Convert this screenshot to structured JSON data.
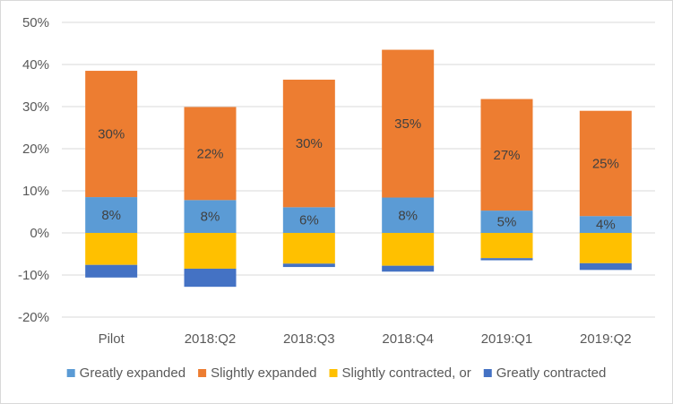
{
  "chart_data": {
    "type": "bar",
    "stacked": true,
    "categories": [
      "Pilot",
      "2018:Q2",
      "2018:Q3",
      "2018:Q4",
      "2019:Q1",
      "2019:Q2"
    ],
    "series": [
      {
        "name": "Greatly expanded",
        "color": "#5b9bd5",
        "values": [
          8.5,
          7.8,
          6.1,
          8.4,
          5.3,
          4.0
        ],
        "labels": [
          "8%",
          "8%",
          "6%",
          "8%",
          "5%",
          "4%"
        ]
      },
      {
        "name": "Slightly expanded",
        "color": "#ed7d31",
        "values": [
          30.0,
          22.1,
          30.3,
          35.1,
          26.5,
          25.0
        ],
        "labels": [
          "30%",
          "22%",
          "30%",
          "35%",
          "27%",
          "25%"
        ]
      },
      {
        "name": "Slightly contracted, or",
        "color": "#ffc000",
        "values": [
          -7.6,
          -8.5,
          -7.3,
          -7.8,
          -6.0,
          -7.2
        ],
        "labels": [
          "",
          "",
          "",
          "",
          "",
          ""
        ]
      },
      {
        "name": "Greatly contracted",
        "color": "#4472c4",
        "values": [
          -3.0,
          -4.3,
          -0.8,
          -1.4,
          -0.5,
          -1.6
        ],
        "labels": [
          "",
          "",
          "",
          "",
          "",
          ""
        ]
      }
    ],
    "title": "",
    "xlabel": "",
    "ylabel": "",
    "ylim": [
      -20,
      50
    ],
    "yticks": [
      "-20%",
      "-10%",
      "0%",
      "10%",
      "20%",
      "30%",
      "40%",
      "50%"
    ],
    "grid": true,
    "legend": "bottom",
    "gridColor": "#d9d9d9"
  }
}
